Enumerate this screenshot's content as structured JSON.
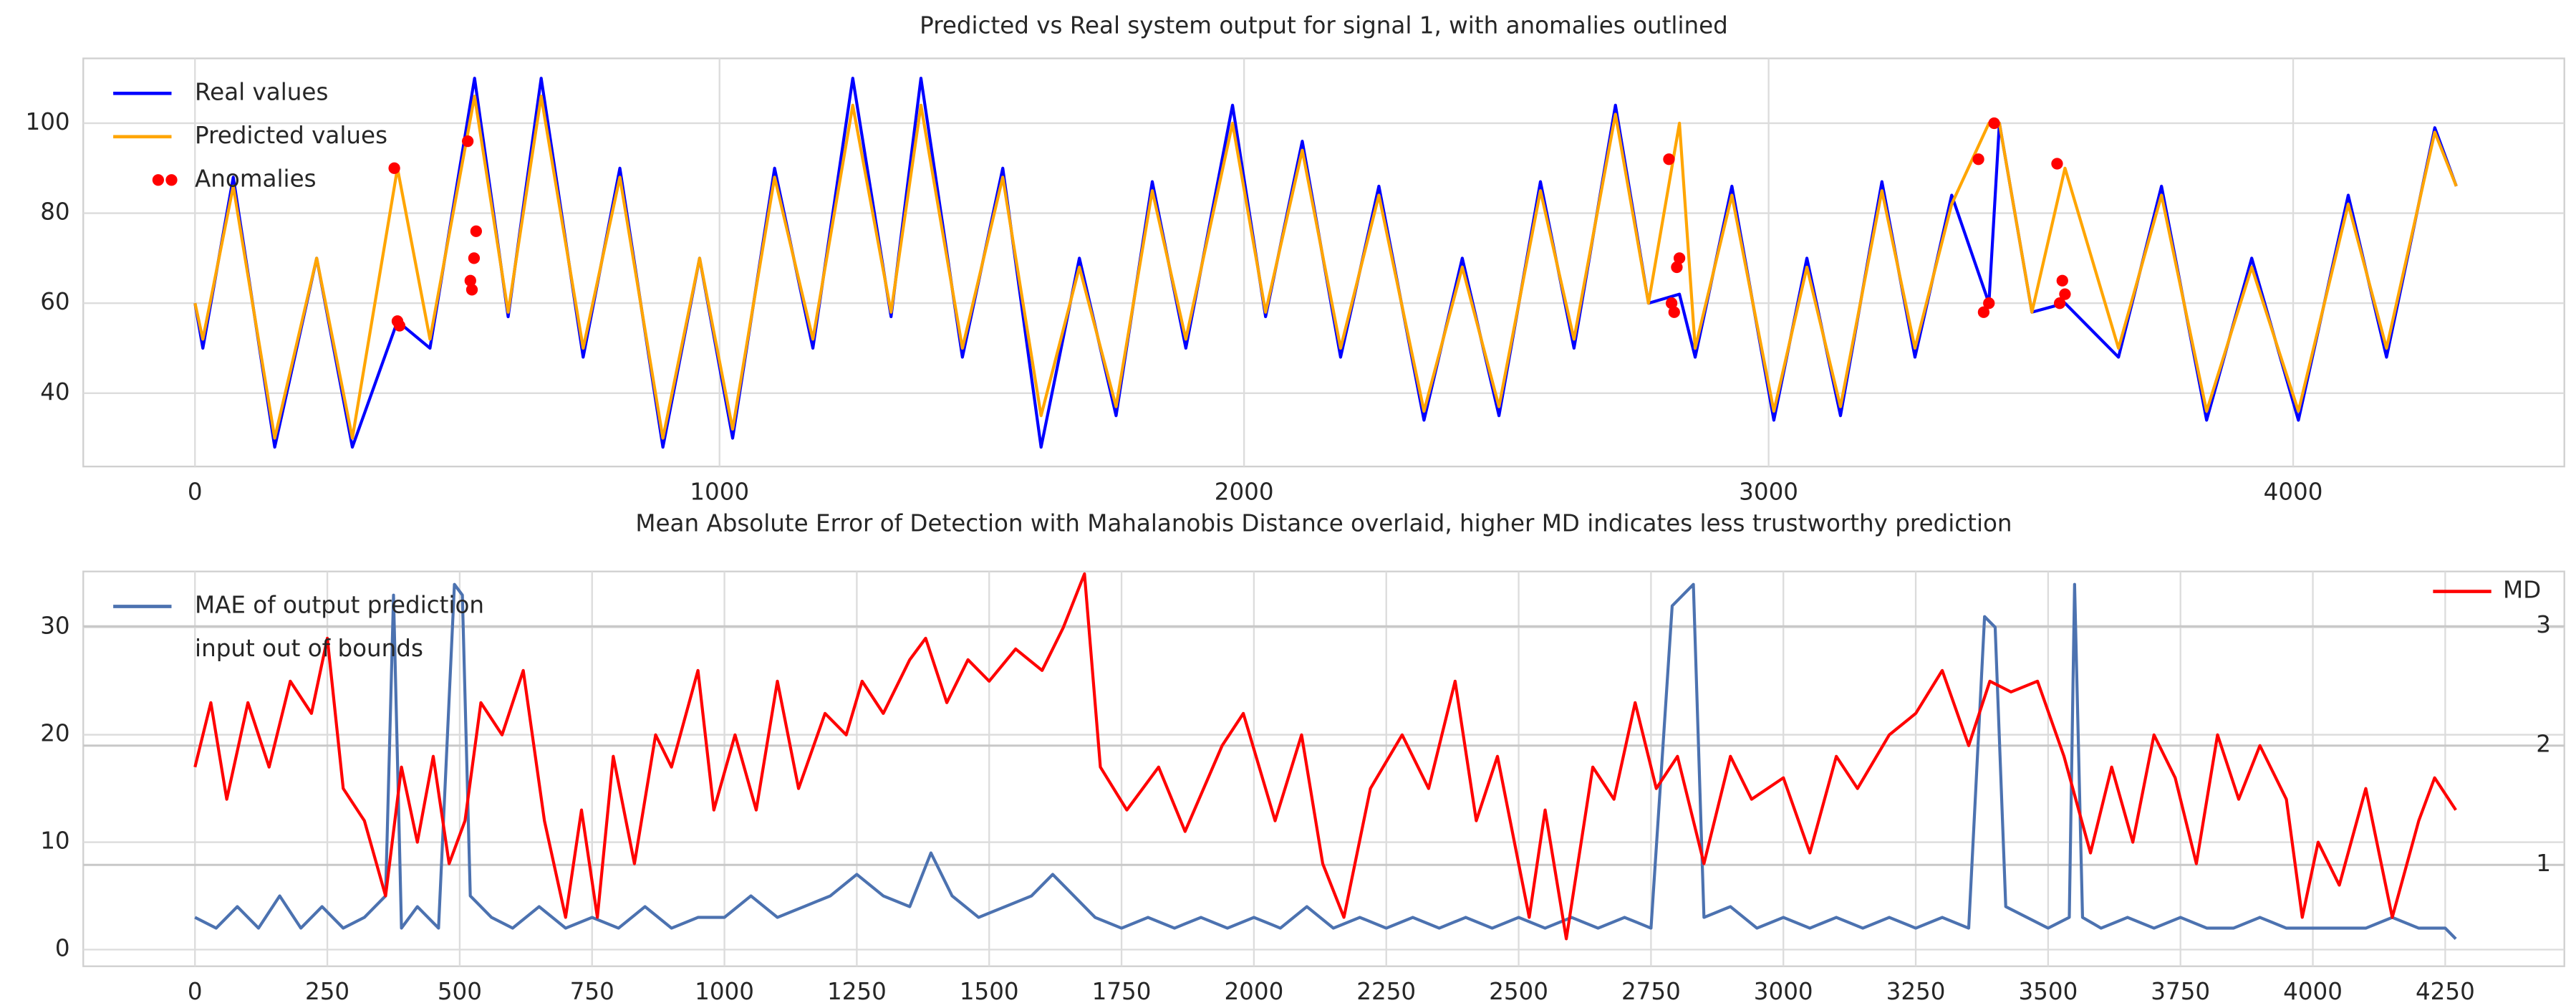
{
  "chart_data": [
    {
      "type": "line",
      "title": "Predicted vs Real system output for signal 1, with anomalies outlined",
      "x": [
        0,
        15,
        73,
        152,
        232,
        300,
        386,
        448,
        533,
        597,
        660,
        740,
        810,
        892,
        962,
        1025,
        1105,
        1178,
        1254,
        1327,
        1384,
        1463,
        1540,
        1613,
        1686,
        1756,
        1825,
        1889,
        1978,
        2041,
        2111,
        2184,
        2257,
        2343,
        2416,
        2486,
        2565,
        2629,
        2708,
        2771,
        2830,
        2860,
        2930,
        3010,
        3073,
        3137,
        3216,
        3279,
        3349,
        3420,
        3440,
        3502,
        3565,
        3667,
        3749,
        3835,
        3921,
        4010,
        4105,
        4178,
        4270,
        4311
      ],
      "series": [
        {
          "name": "Real values",
          "color": "#0000ff",
          "values": [
            60,
            50,
            88,
            28,
            70,
            28,
            56,
            50,
            110,
            57,
            110,
            48,
            90,
            28,
            70,
            30,
            90,
            50,
            110,
            57,
            110,
            48,
            90,
            28,
            70,
            35,
            87,
            50,
            104,
            57,
            96,
            48,
            86,
            34,
            70,
            35,
            87,
            50,
            104,
            60,
            62,
            48,
            86,
            34,
            70,
            35,
            87,
            48,
            84,
            60,
            100,
            58,
            60,
            48,
            86,
            34,
            70,
            34,
            84,
            48,
            99,
            86
          ]
        },
        {
          "name": "Predicted values",
          "color": "#ffa500",
          "values": [
            60,
            52,
            86,
            30,
            70,
            30,
            90,
            52,
            106,
            58,
            106,
            50,
            88,
            30,
            70,
            32,
            88,
            52,
            104,
            58,
            104,
            50,
            88,
            35,
            68,
            37,
            85,
            52,
            100,
            58,
            94,
            50,
            84,
            36,
            68,
            37,
            85,
            52,
            102,
            60,
            100,
            50,
            84,
            36,
            68,
            37,
            85,
            50,
            82,
            100,
            100,
            58,
            90,
            50,
            84,
            36,
            68,
            36,
            82,
            50,
            98,
            86
          ]
        },
        {
          "name": "Anomalies",
          "color": "#ff0000",
          "type": "scatter",
          "x": [
            380,
            386,
            390,
            520,
            525,
            528,
            532,
            536,
            2810,
            2815,
            2820,
            2825,
            2830,
            3400,
            3410,
            3420,
            3430,
            3550,
            3555,
            3560,
            3565
          ],
          "values": [
            90,
            56,
            55,
            96,
            65,
            63,
            70,
            76,
            92,
            60,
            58,
            68,
            70,
            92,
            58,
            60,
            100,
            91,
            60,
            65,
            62
          ]
        }
      ],
      "xlim": [
        -213,
        4517
      ],
      "ylim": [
        23.7,
        114.4
      ],
      "xticks": [
        0,
        1000,
        2000,
        3000,
        4000
      ],
      "yticks": [
        40,
        60,
        80,
        100
      ],
      "grid": true,
      "legend": "upper left"
    },
    {
      "type": "line",
      "title": "Mean Absolute Error of Detection with Mahalanobis Distance overlaid, higher MD indicates less trustworthy prediction",
      "series": [
        {
          "name": "MAE of output prediction",
          "color": "#4c72b0",
          "x": [
            0,
            40,
            80,
            120,
            160,
            200,
            240,
            280,
            320,
            360,
            375,
            390,
            420,
            460,
            490,
            505,
            520,
            560,
            600,
            650,
            700,
            750,
            800,
            850,
            900,
            950,
            1000,
            1050,
            1100,
            1150,
            1200,
            1250,
            1300,
            1350,
            1390,
            1430,
            1480,
            1530,
            1580,
            1620,
            1660,
            1700,
            1750,
            1800,
            1850,
            1900,
            1950,
            2000,
            2050,
            2100,
            2150,
            2200,
            2250,
            2300,
            2350,
            2400,
            2450,
            2500,
            2550,
            2600,
            2650,
            2700,
            2750,
            2790,
            2810,
            2830,
            2850,
            2900,
            2950,
            3000,
            3050,
            3100,
            3150,
            3200,
            3250,
            3300,
            3350,
            3380,
            3400,
            3420,
            3460,
            3500,
            3540,
            3550,
            3565,
            3600,
            3650,
            3700,
            3750,
            3800,
            3850,
            3900,
            3950,
            4000,
            4050,
            4100,
            4150,
            4200,
            4250,
            4270
          ],
          "values": [
            3,
            2,
            4,
            2,
            5,
            2,
            4,
            2,
            3,
            5,
            33,
            2,
            4,
            2,
            34,
            33,
            5,
            3,
            2,
            4,
            2,
            3,
            2,
            4,
            2,
            3,
            3,
            5,
            3,
            4,
            5,
            7,
            5,
            4,
            9,
            5,
            3,
            4,
            5,
            7,
            5,
            3,
            2,
            3,
            2,
            3,
            2,
            3,
            2,
            4,
            2,
            3,
            2,
            3,
            2,
            3,
            2,
            3,
            2,
            3,
            2,
            3,
            2,
            32,
            33,
            34,
            3,
            4,
            2,
            3,
            2,
            3,
            2,
            3,
            2,
            3,
            2,
            31,
            30,
            4,
            3,
            2,
            3,
            34,
            3,
            2,
            3,
            2,
            3,
            2,
            2,
            3,
            2,
            2,
            2,
            2,
            3,
            2,
            2,
            1
          ]
        },
        {
          "name": "MD",
          "color": "#ff0000",
          "axis": "y2",
          "x": [
            0,
            30,
            60,
            100,
            140,
            180,
            220,
            250,
            280,
            320,
            360,
            390,
            420,
            450,
            480,
            510,
            540,
            580,
            620,
            660,
            700,
            730,
            760,
            790,
            830,
            870,
            900,
            950,
            980,
            1020,
            1060,
            1100,
            1140,
            1190,
            1230,
            1260,
            1300,
            1350,
            1380,
            1420,
            1460,
            1500,
            1550,
            1600,
            1640,
            1680,
            1710,
            1760,
            1820,
            1870,
            1940,
            1980,
            2040,
            2090,
            2130,
            2170,
            2220,
            2280,
            2330,
            2380,
            2420,
            2460,
            2520,
            2550,
            2590,
            2640,
            2680,
            2720,
            2760,
            2800,
            2850,
            2900,
            2940,
            3000,
            3050,
            3100,
            3140,
            3200,
            3250,
            3300,
            3350,
            3390,
            3430,
            3480,
            3530,
            3580,
            3620,
            3660,
            3700,
            3740,
            3780,
            3820,
            3860,
            3900,
            3950,
            3980,
            4010,
            4050,
            4100,
            4150,
            4200,
            4230,
            4270
          ],
          "values": [
            1.82,
            2.36,
            1.55,
            2.36,
            1.82,
            2.54,
            2.27,
            2.9,
            1.64,
            1.37,
            0.74,
            1.82,
            1.19,
            1.91,
            1.01,
            1.37,
            2.36,
            2.09,
            2.63,
            1.37,
            0.56,
            1.46,
            0.56,
            1.91,
            1.01,
            2.09,
            1.82,
            2.63,
            1.46,
            2.09,
            1.46,
            2.54,
            1.64,
            2.27,
            2.09,
            2.54,
            2.27,
            2.72,
            2.9,
            2.36,
            2.72,
            2.54,
            2.81,
            2.63,
            2.99,
            3.44,
            1.82,
            1.46,
            1.82,
            1.28,
            2.0,
            2.27,
            1.37,
            2.09,
            1.01,
            0.56,
            1.64,
            2.09,
            1.64,
            2.54,
            1.37,
            1.91,
            0.56,
            1.46,
            0.38,
            1.82,
            1.55,
            2.36,
            1.64,
            1.91,
            1.01,
            1.91,
            1.55,
            1.73,
            1.1,
            1.91,
            1.64,
            2.09,
            2.27,
            2.63,
            2.0,
            2.54,
            2.45,
            2.54,
            1.91,
            1.1,
            1.82,
            1.19,
            2.09,
            1.73,
            1.01,
            2.09,
            1.55,
            2.0,
            1.55,
            0.56,
            1.19,
            0.83,
            1.64,
            0.56,
            1.37,
            1.73,
            1.46
          ]
        }
      ],
      "annotation": "input out of bounds",
      "xlim": [
        -211,
        4475
      ],
      "ylim": [
        -1.55,
        35.2
      ],
      "y2lim": [
        0.15,
        3.46
      ],
      "xticks": [
        0,
        250,
        500,
        750,
        1000,
        1250,
        1500,
        1750,
        2000,
        2250,
        2500,
        2750,
        3000,
        3250,
        3500,
        3750,
        4000,
        4250
      ],
      "yticks": [
        0,
        10,
        20,
        30
      ],
      "y2ticks": [
        1,
        2,
        3
      ],
      "grid": true,
      "legend": "upper left",
      "y2_legend": "upper right"
    }
  ]
}
